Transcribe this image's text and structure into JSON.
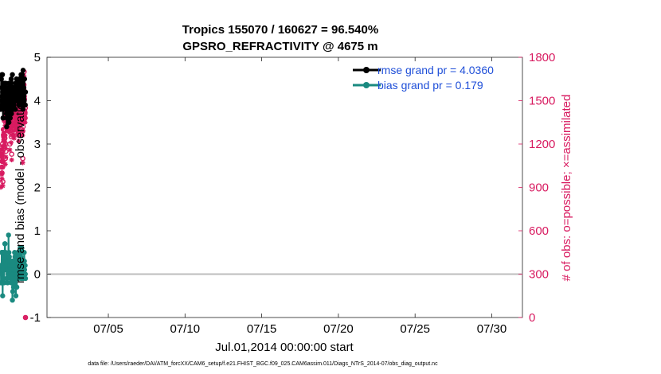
{
  "chart_data": {
    "type": "line",
    "title": "Tropics 155070 / 160627 = 96.540%",
    "subtitle": "GPSRO_REFRACTIVITY @ 4675 m",
    "xlabel": "Jul.01,2014 00:00:00 start",
    "ylabel_left": "rmse and bias (model - observation)",
    "ylabel_right": "# of obs: o=possible; ×=assimilated",
    "footnote": "data file: /Users/raeder/DAI/ATM_forcXX/CAM6_setup/f.e21.FHIST_BGC.f09_025.CAM6assim.011/Diags_NTrS_2014-07/obs_diag_output.nc",
    "x_range": [
      1,
      32
    ],
    "x_ticks": [
      5,
      10,
      15,
      20,
      25,
      30
    ],
    "x_tick_labels": [
      "07/05",
      "07/10",
      "07/15",
      "07/20",
      "07/25",
      "07/30"
    ],
    "y_left_range": [
      -1,
      5
    ],
    "y_left_ticks": [
      "-1",
      "0",
      "1",
      "2",
      "3",
      "4",
      "5"
    ],
    "y_right_range": [
      0,
      1800
    ],
    "y_right_ticks": [
      "0",
      "300",
      "600",
      "900",
      "1200",
      "1500",
      "1800"
    ],
    "zero_line": 0,
    "colors": {
      "rmse": "#000000",
      "bias": "#1a8a80",
      "obs": "#d81b60",
      "legend_text": "#1f4fd8"
    },
    "legend": {
      "position": "top-right",
      "rmse_label": "rmse grand pr = 4.0360",
      "bias_label": "bias grand pr = 0.179"
    },
    "series": [
      {
        "name": "rmse",
        "values": [
          3.8,
          4.0,
          4.5,
          4.5,
          4.0,
          4.3,
          4.6,
          4.1,
          3.9,
          4.6,
          4.2,
          4.0,
          3.6,
          4.0,
          3.9,
          3.8,
          4.3,
          3.9,
          4.4,
          4.3,
          4.1,
          4.0,
          4.3,
          3.8,
          4.2,
          4.4,
          3.9,
          4.4,
          4.0,
          4.0,
          3.7,
          4.0,
          3.4,
          3.6,
          4.1,
          4.2,
          3.8,
          3.8,
          4.0,
          4.2,
          4.3,
          4.0,
          4.1,
          4.4,
          3.5,
          3.6,
          3.9,
          4.1,
          4.2,
          3.8,
          4.3,
          3.6,
          4.1,
          3.8,
          4.2,
          4.0,
          4.5,
          4.1,
          3.7,
          4.2,
          3.9,
          4.3,
          3.9,
          4.6,
          4.1,
          3.9,
          4.0,
          4.2,
          4.3,
          3.8,
          4.1,
          4.0,
          4.1,
          4.3,
          4.0,
          4.2,
          4.0,
          4.3,
          4.3,
          3.8,
          4.4,
          4.1,
          4.2,
          4.0,
          4.3,
          4.5,
          4.0,
          4.2,
          4.0,
          4.1,
          4.4,
          4.1,
          4.0,
          4.2,
          4.4,
          4.0,
          4.3,
          4.2,
          3.9,
          4.4,
          3.9,
          4.5,
          4.2,
          4.4,
          4.2,
          4.4,
          4.0,
          3.9,
          4.5,
          4.3,
          4.6,
          4.2,
          4.0,
          4.4,
          4.1,
          4.3,
          4.6,
          4.2,
          3.9,
          4.3,
          3.8,
          4.7,
          4.2,
          4.1,
          3.9,
          4.3,
          4.2,
          4.0,
          4.2,
          4.5,
          3.9,
          4.2,
          4.2,
          3.9,
          4.2
        ]
      },
      {
        "name": "bias",
        "values": [
          0.2,
          -0.2,
          0.2,
          -0.2,
          0.1,
          0.5,
          0.2,
          0.0,
          0.5,
          0.0,
          -0.5,
          0.1,
          0.1,
          0.2,
          0.3,
          0.3,
          0.1,
          0.5,
          -0.2,
          0.3,
          0.1,
          0.3,
          0.7,
          0.7,
          0.5,
          0.4,
          0.5,
          0.3,
          0.4,
          0.1,
          0.2,
          0.2,
          -0.1,
          0.4,
          0.1,
          0.3,
          0.1,
          -0.2,
          0.3,
          0.3,
          0.0,
          0.2,
          0.9,
          0.4,
          0.5,
          0.4,
          0.4,
          0.3,
          0.2,
          0.1,
          0.2,
          0.3,
          -0.1,
          0.0,
          0.2,
          0.1,
          0.1,
          -0.2,
          0.2,
          0.0,
          0.3,
          -0.1,
          0.2,
          -0.6,
          0.2,
          -0.4,
          0.3,
          0.0,
          0.2,
          -0.3,
          0.3,
          0.1,
          0.0,
          0.2,
          -0.2,
          0.5,
          0.0,
          0.4,
          0.4,
          0.1,
          0.0,
          0.2,
          -0.5,
          0.1,
          0.3,
          0.4,
          0.2,
          -0.3,
          0.0,
          0.2,
          0.3,
          0.0,
          0.5,
          0.3,
          0.2,
          -0.1,
          0.3,
          0.4,
          0.2,
          0.4,
          0.0,
          0.1,
          0.3,
          0.0,
          0.5,
          0.6,
          0.0,
          0.6,
          0.2,
          0.4,
          0.5,
          -0.1,
          0.3,
          0.3,
          0.6,
          0.0,
          0.3,
          0.1,
          0.1,
          0.0,
          -0.1,
          0.2,
          0.3,
          0.1,
          0.0,
          0.3,
          0.1,
          0.5,
          0.3,
          0.1,
          0.0,
          0.2,
          0.2,
          0.0,
          -0.1
        ]
      },
      {
        "name": "obs_possible",
        "values": [
          930,
          1130,
          1150,
          1140,
          1120,
          1180,
          1040,
          1000,
          1040,
          1080,
          1200,
          1150,
          940,
          1080,
          1110,
          1300,
          1260,
          1250,
          1380,
          1300,
          1230,
          1290,
          1260,
          1390,
          1240,
          1360,
          1300,
          1100,
          1400,
          1200,
          1150,
          1450,
          1440,
          1420,
          1470,
          1400,
          1490,
          1510,
          1350,
          1400,
          1330,
          1380,
          1320,
          1500,
          1460,
          1350,
          1420,
          1510,
          1390,
          1390,
          1520,
          1310,
          1380,
          1200,
          1400,
          1410,
          1480,
          1350,
          1400,
          1330,
          1380,
          1250,
          1450,
          1520,
          1130,
          1300,
          1380,
          1460,
          1450,
          1420,
          1500,
          1370,
          1310,
          1550,
          1550,
          1450,
          1510,
          1470,
          1280,
          1300,
          1360,
          1330,
          1460,
          1490,
          1420,
          1480,
          1410,
          1370,
          1450,
          1380,
          1500,
          1390,
          1420,
          1510,
          1500,
          1470,
          1400,
          1350,
          1330,
          1440,
          1540,
          1320,
          1290,
          1380,
          1260,
          1500,
          1400,
          1460,
          1570,
          1420,
          1470,
          1510,
          1370,
          1450,
          1550,
          1520,
          1600,
          1560,
          1480,
          1400,
          1500,
          1640,
          1420,
          1510,
          1300,
          1520,
          1500,
          1380,
          1290,
          1100,
          1380,
          1320,
          1550,
          1470,
          1470,
          1550,
          1610,
          1700,
          1530,
          1510,
          1430,
          1380,
          1410,
          1380,
          1450,
          0
        ]
      },
      {
        "name": "obs_assimilated",
        "values": [
          900,
          1110,
          1110,
          1120,
          1080,
          1160,
          990,
          960,
          1000,
          1040,
          1180,
          1130,
          910,
          1040,
          1080,
          1270,
          1220,
          1230,
          1360,
          1270,
          1190,
          1260,
          1220,
          1360,
          1200,
          1330,
          1260,
          1060,
          1380,
          1170,
          1110,
          1430,
          1420,
          1400,
          1450,
          1370,
          1470,
          1490,
          1320,
          1380,
          1300,
          1360,
          1290,
          1480,
          1430,
          1310,
          1390,
          1490,
          1360,
          1360,
          1500,
          1280,
          1340,
          1160,
          1370,
          1380,
          1460,
          1320,
          1370,
          1300,
          1340,
          1210,
          1420,
          1500,
          1090,
          1260,
          1350,
          1430,
          1420,
          1390,
          1470,
          1330,
          1270,
          1530,
          1520,
          1420,
          1490,
          1440,
          1240,
          1260,
          1330,
          1300,
          1430,
          1460,
          1390,
          1450,
          1380,
          1340,
          1420,
          1350,
          1480,
          1360,
          1390,
          1490,
          1470,
          1450,
          1370,
          1320,
          1300,
          1410,
          1510,
          1280,
          1260,
          1350,
          1220,
          1480,
          1370,
          1430,
          1550,
          1390,
          1450,
          1490,
          1340,
          1420,
          1520,
          1490,
          1570,
          1540,
          1450,
          1380,
          1480,
          1620,
          1390,
          1480,
          1260,
          1490,
          1470,
          1350,
          1260,
          1070,
          1360,
          1290,
          1520,
          1440,
          1440,
          1530,
          1580,
          1670,
          1500,
          1480,
          1400,
          1350,
          1380,
          1350,
          1420,
          0
        ]
      }
    ]
  }
}
